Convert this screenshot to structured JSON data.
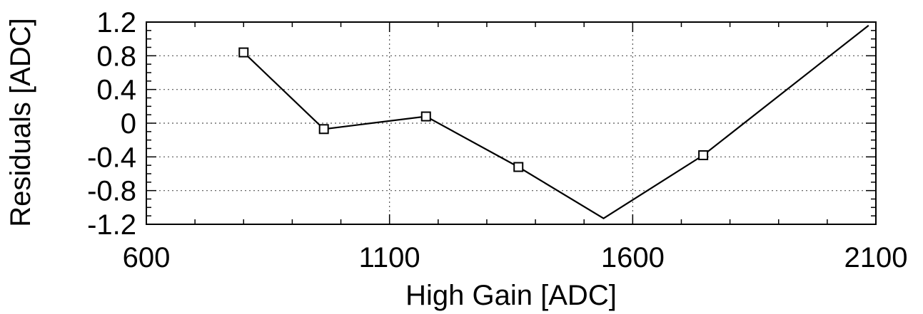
{
  "chart_data": {
    "type": "line",
    "title": "",
    "xlabel": "High Gain [ADC]",
    "ylabel": "Residuals [ADC]",
    "xlim": [
      600,
      2100
    ],
    "ylim": [
      -1.2,
      1.2
    ],
    "grid": true,
    "x_ticks": [
      600,
      1100,
      1600,
      2100
    ],
    "x_tick_labels": [
      "600",
      "1100",
      "1600",
      "2100"
    ],
    "y_ticks": [
      1.2,
      0.8,
      0.4,
      0,
      -0.4,
      -0.8,
      -1.2
    ],
    "y_tick_labels": [
      "1.2",
      "0.8",
      "0.4",
      "0",
      "-0.4",
      "-0.8",
      "-1.2"
    ],
    "series": [
      {
        "line": true,
        "markers": "open-square",
        "color": "#000000",
        "x": [
          800,
          965,
          1175,
          1365,
          1540,
          1745,
          2085
        ],
        "y": [
          0.84,
          -0.07,
          0.08,
          -0.52,
          -1.13,
          -0.38,
          1.16
        ],
        "marked": [
          true,
          true,
          true,
          true,
          false,
          true,
          false
        ]
      }
    ]
  }
}
